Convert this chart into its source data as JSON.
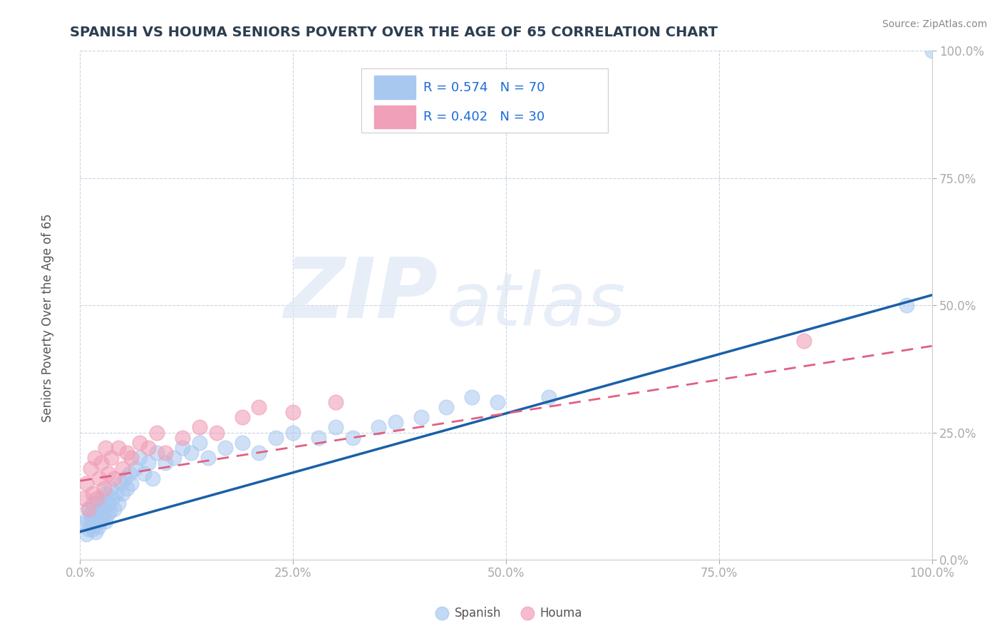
{
  "title": "SPANISH VS HOUMA SENIORS POVERTY OVER THE AGE OF 65 CORRELATION CHART",
  "source": "Source: ZipAtlas.com",
  "ylabel": "Seniors Poverty Over the Age of 65",
  "xlim": [
    0,
    1
  ],
  "ylim": [
    0,
    1
  ],
  "xticks": [
    0.0,
    0.25,
    0.5,
    0.75,
    1.0
  ],
  "yticks": [
    0.0,
    0.25,
    0.5,
    0.75,
    1.0
  ],
  "spanish_color": "#a8c8f0",
  "houma_color": "#f0a0b8",
  "spanish_line_color": "#1a5fa8",
  "houma_line_color": "#e06080",
  "background_color": "#ffffff",
  "grid_color": "#c8d4e0",
  "legend_text_color": "#1a6adc",
  "legend_R_spanish": "R = 0.574",
  "legend_N_spanish": "N = 70",
  "legend_R_houma": "R = 0.402",
  "legend_N_houma": "N = 30",
  "watermark_line1": "ZIP",
  "watermark_line2": "atlas",
  "spanish_x": [
    0.005,
    0.007,
    0.008,
    0.01,
    0.01,
    0.012,
    0.013,
    0.015,
    0.015,
    0.016,
    0.017,
    0.018,
    0.018,
    0.02,
    0.02,
    0.021,
    0.022,
    0.022,
    0.023,
    0.024,
    0.025,
    0.025,
    0.026,
    0.027,
    0.028,
    0.03,
    0.03,
    0.032,
    0.033,
    0.035,
    0.036,
    0.038,
    0.04,
    0.042,
    0.045,
    0.048,
    0.05,
    0.052,
    0.055,
    0.058,
    0.06,
    0.065,
    0.07,
    0.075,
    0.08,
    0.085,
    0.09,
    0.1,
    0.11,
    0.12,
    0.13,
    0.14,
    0.15,
    0.17,
    0.19,
    0.21,
    0.23,
    0.25,
    0.28,
    0.3,
    0.32,
    0.35,
    0.37,
    0.4,
    0.43,
    0.46,
    0.49,
    0.55,
    0.97,
    1.0
  ],
  "spanish_y": [
    0.07,
    0.05,
    0.08,
    0.1,
    0.06,
    0.09,
    0.075,
    0.06,
    0.11,
    0.08,
    0.07,
    0.09,
    0.055,
    0.085,
    0.1,
    0.065,
    0.09,
    0.11,
    0.075,
    0.095,
    0.08,
    0.12,
    0.1,
    0.085,
    0.11,
    0.075,
    0.13,
    0.09,
    0.11,
    0.095,
    0.14,
    0.12,
    0.1,
    0.13,
    0.11,
    0.15,
    0.13,
    0.16,
    0.14,
    0.17,
    0.15,
    0.18,
    0.2,
    0.17,
    0.19,
    0.16,
    0.21,
    0.19,
    0.2,
    0.22,
    0.21,
    0.23,
    0.2,
    0.22,
    0.23,
    0.21,
    0.24,
    0.25,
    0.24,
    0.26,
    0.24,
    0.26,
    0.27,
    0.28,
    0.3,
    0.32,
    0.31,
    0.32,
    0.5,
    1.0
  ],
  "houma_x": [
    0.005,
    0.007,
    0.01,
    0.012,
    0.015,
    0.017,
    0.02,
    0.022,
    0.025,
    0.028,
    0.03,
    0.033,
    0.036,
    0.04,
    0.045,
    0.05,
    0.055,
    0.06,
    0.07,
    0.08,
    0.09,
    0.1,
    0.12,
    0.14,
    0.16,
    0.19,
    0.21,
    0.25,
    0.3,
    0.85
  ],
  "houma_y": [
    0.12,
    0.15,
    0.1,
    0.18,
    0.13,
    0.2,
    0.12,
    0.16,
    0.19,
    0.14,
    0.22,
    0.17,
    0.2,
    0.16,
    0.22,
    0.18,
    0.21,
    0.2,
    0.23,
    0.22,
    0.25,
    0.21,
    0.24,
    0.26,
    0.25,
    0.28,
    0.3,
    0.29,
    0.31,
    0.43
  ],
  "spanish_trend_x0": 0.0,
  "spanish_trend_y0": 0.055,
  "spanish_trend_x1": 1.0,
  "spanish_trend_y1": 0.52,
  "houma_trend_x0": 0.0,
  "houma_trend_y0": 0.155,
  "houma_trend_x1": 1.0,
  "houma_trend_y1": 0.42
}
